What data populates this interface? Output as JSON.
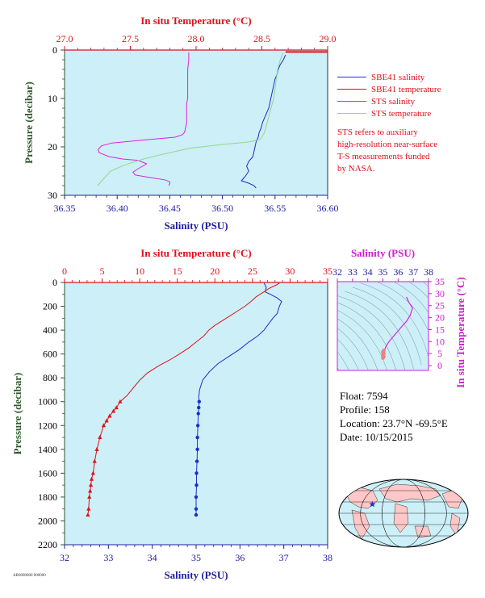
{
  "colors": {
    "plot_bg": "#cdeff7",
    "salinity_axis": "#2020a0",
    "temperature_axis": "#e0101a",
    "pressure_axis": "#2e5a2e",
    "inset_axis": "#cc20cc",
    "sbe41_salinity": "#1a2fc8",
    "sbe41_temperature": "#e0101a",
    "sts_salinity": "#e020e0",
    "sts_temperature": "#8fd88f",
    "map_land": "#ffc7c7",
    "map_ocean": "#cdeff7",
    "float_marker": "#1a2fc8"
  },
  "legend": {
    "sbe41_salinity": "SBE41 salinity",
    "sbe41_temperature": "SBE41 temperature",
    "sts_salinity": "STS salinity",
    "sts_temperature": "STS temperature",
    "note": [
      "STS refers to auxiliary",
      "high-resolution near-surface",
      "T-S measurements funded",
      "by NASA."
    ]
  },
  "float_info": {
    "float": "Float:  7594",
    "profile": "Profile:  158",
    "location": "Location:  23.7°N  -69.5°E",
    "date": "Date:  10/15/2015"
  },
  "footer_stamp": "AR0000000 000000",
  "chart_data": [
    {
      "id": "upper",
      "type": "line",
      "top_axis_label": "In situ Temperature (°C)",
      "bottom_axis_label": "Salinity (PSU)",
      "left_axis_label": "Pressure (decibar)",
      "salinity_range": [
        36.35,
        36.6
      ],
      "salinity_ticks": [
        "36.35",
        "36.40",
        "36.45",
        "36.50",
        "36.55",
        "36.60"
      ],
      "temperature_range": [
        27.0,
        29.0
      ],
      "temperature_ticks": [
        "27.0",
        "27.5",
        "28.0",
        "28.5",
        "29.0"
      ],
      "pressure_range": [
        0,
        30
      ],
      "pressure_ticks": [
        "0",
        "10",
        "20",
        "30"
      ],
      "series": [
        {
          "name": "SBE41 salinity",
          "axis": "salinity",
          "x": [
            36.56,
            36.558,
            36.555,
            36.553,
            36.552,
            36.55,
            36.549,
            36.548,
            36.547,
            36.546,
            36.545,
            36.544,
            36.542,
            36.54,
            36.538,
            36.537,
            36.535,
            36.534,
            36.532,
            36.531,
            36.53,
            36.529,
            36.525,
            36.523,
            36.525,
            36.522,
            36.52,
            36.518,
            36.525,
            36.53,
            36.532
          ],
          "y": [
            1,
            2,
            3,
            4,
            5,
            6,
            7,
            8,
            9,
            10,
            11,
            12,
            13,
            14,
            15,
            16,
            17,
            18,
            19,
            20,
            21,
            22,
            23,
            24,
            25,
            26,
            26.5,
            27,
            27.5,
            28,
            28.5
          ]
        },
        {
          "name": "SBE41 temperature",
          "axis": "temperature",
          "x": [
            28.68,
            28.7,
            28.72,
            28.74,
            28.76,
            28.78,
            28.8,
            28.82,
            28.84,
            28.86,
            28.88,
            28.9,
            28.92,
            28.94,
            28.96,
            28.98,
            29.0
          ],
          "y": [
            0.4,
            0.4,
            0.4,
            0.4,
            0.4,
            0.4,
            0.4,
            0.4,
            0.4,
            0.4,
            0.4,
            0.4,
            0.4,
            0.4,
            0.4,
            0.4,
            0.4
          ]
        },
        {
          "name": "STS salinity",
          "axis": "salinity",
          "x": [
            36.468,
            36.468,
            36.467,
            36.467,
            36.467,
            36.467,
            36.466,
            36.466,
            36.466,
            36.466,
            36.466,
            36.465,
            36.464,
            36.462,
            36.455,
            36.44,
            36.415,
            36.395,
            36.385,
            36.382,
            36.383,
            36.392,
            36.405,
            36.42,
            36.428,
            36.42,
            36.415,
            36.417,
            36.43,
            36.445,
            36.45,
            36.45,
            36.449
          ],
          "y": [
            0.5,
            2,
            4,
            6,
            8,
            10,
            11,
            12,
            13,
            14,
            15,
            16,
            17,
            17.5,
            18,
            18.3,
            18.8,
            19.2,
            19.8,
            20.5,
            21.2,
            22.0,
            22.5,
            22.8,
            23.5,
            24.5,
            25.2,
            25.8,
            26.3,
            26.8,
            27.2,
            27.6,
            28.0
          ]
        },
        {
          "name": "STS temperature",
          "axis": "temperature",
          "x": [
            28.66,
            28.64,
            28.62,
            28.61,
            28.6,
            28.59,
            28.58,
            28.57,
            28.56,
            28.55,
            28.54,
            28.53,
            28.52,
            28.51,
            28.5,
            28.48,
            28.4,
            28.2,
            27.95,
            27.75,
            27.6,
            27.45,
            27.35,
            27.3,
            27.25
          ],
          "y": [
            0.5,
            2,
            4,
            6,
            8,
            10,
            11,
            12,
            13,
            14,
            15,
            16,
            17,
            17.5,
            18,
            18.5,
            19.0,
            19.5,
            20.3,
            21.5,
            22.5,
            23.8,
            25.0,
            26.5,
            28.0
          ]
        }
      ]
    },
    {
      "id": "lower",
      "type": "line",
      "top_axis_label": "In situ Temperature (°C)",
      "bottom_axis_label": "Salinity (PSU)",
      "left_axis_label": "Pressure (decibar)",
      "salinity_range": [
        32,
        38
      ],
      "salinity_ticks": [
        "32",
        "33",
        "34",
        "35",
        "36",
        "37",
        "38"
      ],
      "temperature_range": [
        0,
        35
      ],
      "temperature_ticks": [
        "0",
        "5",
        "10",
        "15",
        "20",
        "25",
        "30",
        "35"
      ],
      "pressure_range": [
        0,
        2200
      ],
      "pressure_ticks": [
        "0",
        "200",
        "400",
        "600",
        "800",
        "1000",
        "1200",
        "1400",
        "1600",
        "1800",
        "2000",
        "2200"
      ],
      "series": [
        {
          "name": "SBE41 salinity",
          "axis": "salinity",
          "x": [
            36.55,
            36.6,
            36.58,
            36.7,
            36.85,
            36.95,
            36.9,
            36.85,
            36.75,
            36.65,
            36.55,
            36.4,
            36.2,
            36.0,
            35.75,
            35.5,
            35.3,
            35.15,
            35.08,
            35.06,
            35.07,
            35.06,
            35.05,
            35.04,
            35.03,
            35.03,
            35.02,
            35.01,
            35.01,
            35.0,
            35.0,
            35.0
          ],
          "y": [
            5,
            40,
            80,
            100,
            130,
            160,
            200,
            260,
            300,
            350,
            400,
            450,
            500,
            560,
            620,
            680,
            750,
            820,
            900,
            960,
            1000,
            1050,
            1100,
            1200,
            1300,
            1400,
            1500,
            1600,
            1700,
            1800,
            1900,
            1950
          ]
        },
        {
          "name": "SBE41 temperature",
          "axis": "temperature",
          "x": [
            28.6,
            28.2,
            27.2,
            26.5,
            25.5,
            24.8,
            24.0,
            23.0,
            22.0,
            21.0,
            20.0,
            19.2,
            18.5,
            17.5,
            16.5,
            15.3,
            14.0,
            12.5,
            11.0,
            10.0,
            9.2,
            8.3,
            7.4,
            6.9,
            6.5,
            6.0,
            5.6,
            5.2,
            4.7,
            4.3,
            4.0,
            3.8,
            3.6,
            3.5,
            3.4,
            3.3,
            3.2,
            3.1
          ],
          "y": [
            5,
            20,
            50,
            80,
            120,
            160,
            200,
            240,
            280,
            320,
            360,
            400,
            450,
            500,
            550,
            600,
            650,
            700,
            760,
            820,
            880,
            950,
            1000,
            1050,
            1080,
            1120,
            1160,
            1200,
            1300,
            1400,
            1500,
            1600,
            1650,
            1700,
            1750,
            1800,
            1900,
            1950
          ]
        }
      ]
    },
    {
      "id": "ts_inset",
      "type": "line",
      "top_axis_label": "Salinity (PSU)",
      "right_axis_label": "In situ Temperature (°C)",
      "salinity_range": [
        32,
        38
      ],
      "salinity_ticks": [
        "32",
        "33",
        "34",
        "35",
        "36",
        "37",
        "38"
      ],
      "temperature_range": [
        -2,
        35
      ],
      "temperature_ticks": [
        "0",
        "5",
        "10",
        "15",
        "20",
        "25",
        "30",
        "35"
      ],
      "series": [
        {
          "name": "SBE41 T-S",
          "x": [
            36.55,
            36.7,
            36.95,
            36.8,
            36.55,
            36.2,
            35.8,
            35.4,
            35.2,
            35.1,
            35.05,
            35.02,
            35.0
          ],
          "y": [
            28.6,
            26.5,
            24.0,
            21.0,
            18.5,
            16.0,
            13.0,
            10.0,
            8.0,
            6.5,
            5.0,
            4.0,
            3.2
          ]
        }
      ]
    }
  ],
  "map": {
    "float_lat": 23.7,
    "float_lon": -69.5
  }
}
